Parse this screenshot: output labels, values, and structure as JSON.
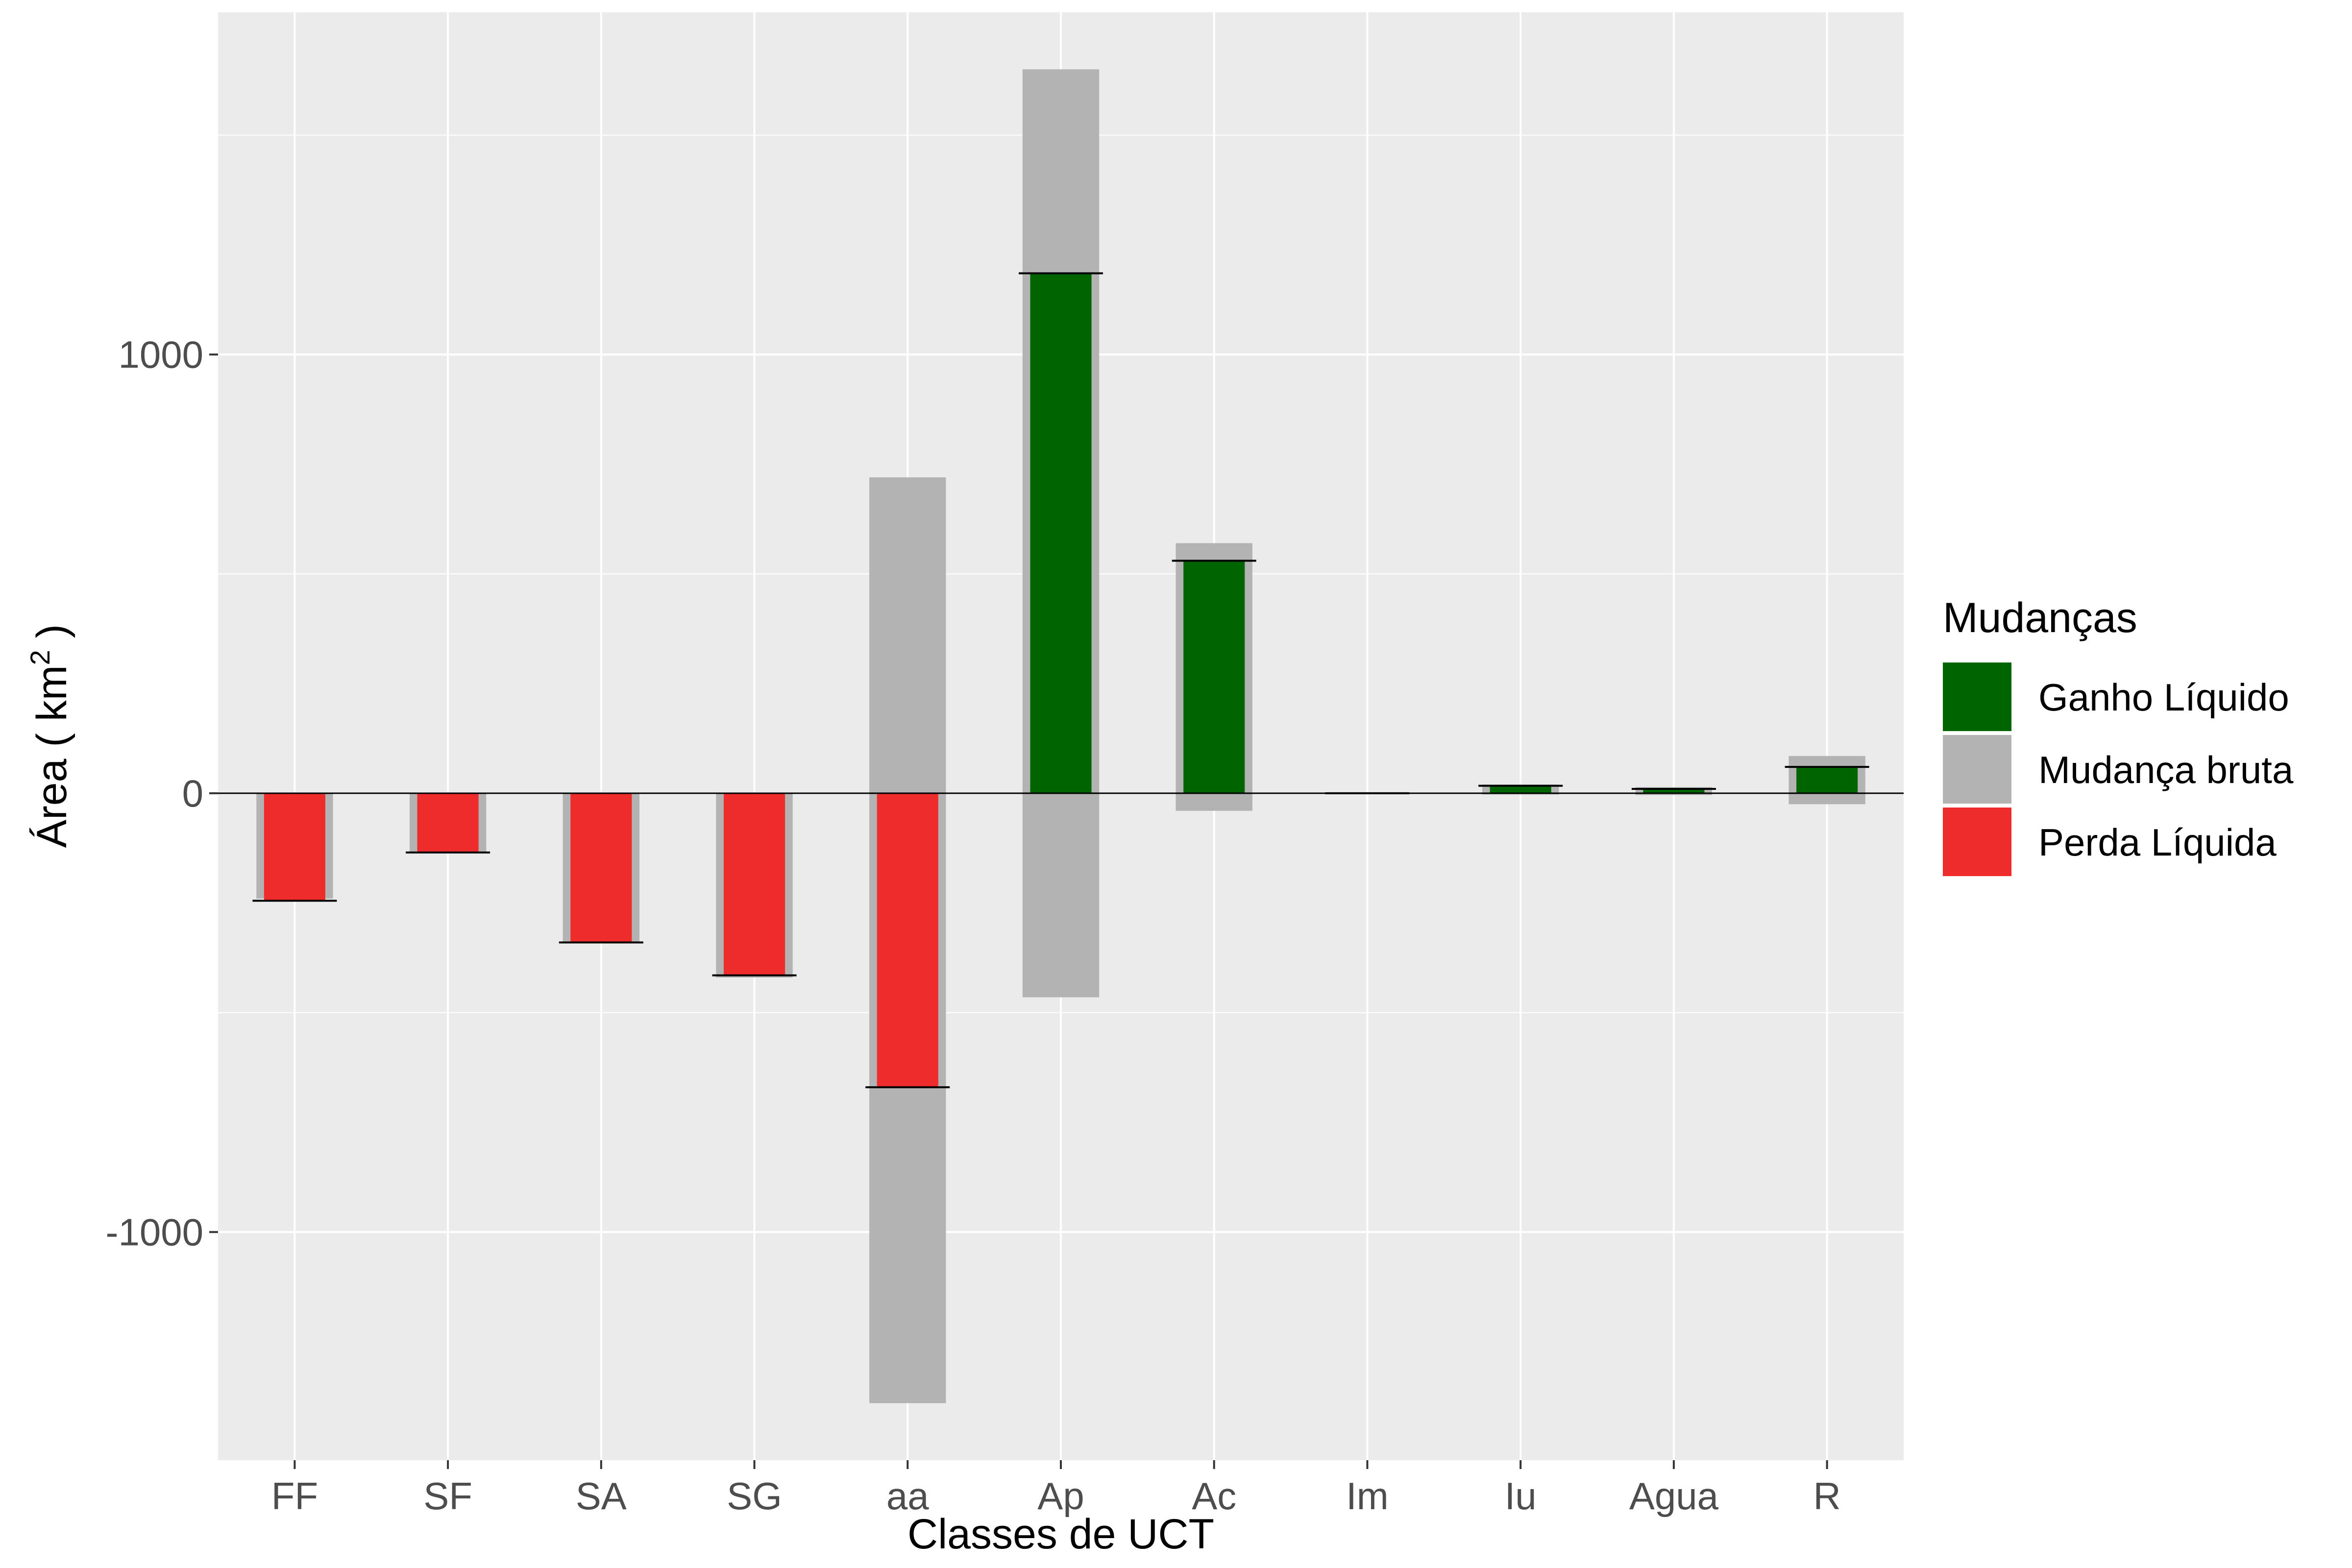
{
  "chart_data": {
    "type": "bar",
    "xlabel": "Classes de UCT",
    "ylabel_prefix": "Área ( km",
    "ylabel_superscript": "2",
    "ylabel_suffix": " )",
    "ylim": [
      -1520,
      1780
    ],
    "y_major_ticks": [
      -1000,
      0,
      1000
    ],
    "y_tick_labels": [
      "-1000",
      "0",
      "1000"
    ],
    "y_minor_ticks": [
      -500,
      500,
      1500
    ],
    "categories": [
      "FF",
      "SF",
      "SA",
      "SG",
      "aa",
      "Ap",
      "Ac",
      "Im",
      "Iu",
      "Agua",
      "R"
    ],
    "series": [
      {
        "name": "Mudança bruta",
        "color": "#b3b3b3",
        "role": "gross",
        "gain": [
          0,
          0,
          0,
          0,
          720,
          1650,
          570,
          2,
          20,
          14,
          85
        ],
        "loss": [
          -240,
          -135,
          -340,
          -420,
          -1390,
          -465,
          -40,
          -2,
          -3,
          -4,
          -25
        ]
      },
      {
        "name": "Ganho Líquido",
        "color": "#006400",
        "role": "net",
        "values": [
          0,
          0,
          0,
          0,
          0,
          1185,
          530,
          0,
          17,
          10,
          60
        ]
      },
      {
        "name": "Perda Líquida",
        "color": "#ee2c2c",
        "role": "net",
        "values": [
          -245,
          -135,
          -340,
          -415,
          -670,
          0,
          0,
          0,
          0,
          0,
          0
        ]
      }
    ],
    "net_values": [
      -245,
      -135,
      -340,
      -415,
      -670,
      1185,
      530,
      0,
      17,
      10,
      60
    ],
    "legend": {
      "title": "Mudanças",
      "position": "right",
      "entries": [
        {
          "label": "Ganho Líquido",
          "color": "#006400"
        },
        {
          "label": "Mudança bruta",
          "color": "#b3b3b3"
        },
        {
          "label": "Perda Líquida",
          "color": "#ee2c2c"
        }
      ]
    },
    "panel_background": "#ebebeb",
    "grid": true
  }
}
